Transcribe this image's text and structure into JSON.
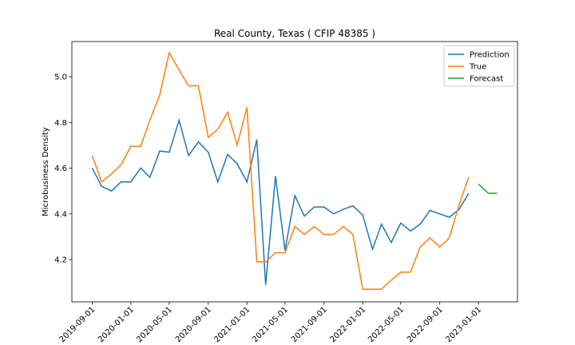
{
  "chart_data": {
    "type": "line",
    "title": "Real County, Texas ( CFIP 48385 )",
    "y_label": "Microbusiness Density",
    "x": [
      "2019-09-01",
      "2019-10-01",
      "2019-11-01",
      "2019-12-01",
      "2020-01-01",
      "2020-02-01",
      "2020-03-01",
      "2020-04-01",
      "2020-05-01",
      "2020-06-01",
      "2020-07-01",
      "2020-08-01",
      "2020-09-01",
      "2020-10-01",
      "2020-11-01",
      "2020-12-01",
      "2021-01-01",
      "2021-02-01",
      "2021-03-01",
      "2021-04-01",
      "2021-05-01",
      "2021-06-01",
      "2021-07-01",
      "2021-08-01",
      "2021-09-01",
      "2021-10-01",
      "2021-11-01",
      "2021-12-01",
      "2022-01-01",
      "2022-02-01",
      "2022-03-01",
      "2022-04-01",
      "2022-05-01",
      "2022-06-01",
      "2022-07-01",
      "2022-08-01",
      "2022-09-01",
      "2022-10-01",
      "2022-11-01",
      "2022-12-01",
      "2023-01-01",
      "2023-02-01",
      "2023-03-01"
    ],
    "series": [
      {
        "name": "Prediction",
        "color": "#1f77b4",
        "values": [
          4.6,
          4.52,
          4.5,
          4.54,
          4.54,
          4.6,
          4.56,
          4.675,
          4.67,
          4.81,
          4.655,
          4.715,
          4.67,
          4.54,
          4.66,
          4.62,
          4.54,
          4.725,
          4.09,
          4.565,
          4.24,
          4.48,
          4.39,
          4.43,
          4.43,
          4.4,
          4.42,
          4.435,
          4.395,
          4.245,
          4.355,
          4.275,
          4.36,
          4.325,
          4.355,
          4.415,
          4.4,
          4.385,
          4.42,
          4.49,
          null,
          null,
          null
        ]
      },
      {
        "name": "True",
        "color": "#ff7f0e",
        "values": [
          4.655,
          4.54,
          4.575,
          4.615,
          4.695,
          4.695,
          4.81,
          4.92,
          5.105,
          5.03,
          4.96,
          4.96,
          4.735,
          4.77,
          4.845,
          4.7,
          4.865,
          4.19,
          4.19,
          4.23,
          4.23,
          4.345,
          4.31,
          4.345,
          4.31,
          4.31,
          4.345,
          4.31,
          4.07,
          4.07,
          4.07,
          4.11,
          4.145,
          4.145,
          4.255,
          4.295,
          4.255,
          4.295,
          4.44,
          4.56,
          null,
          null,
          null
        ]
      },
      {
        "name": "Forecast",
        "color": "#2ca02c",
        "values": [
          null,
          null,
          null,
          null,
          null,
          null,
          null,
          null,
          null,
          null,
          null,
          null,
          null,
          null,
          null,
          null,
          null,
          null,
          null,
          null,
          null,
          null,
          null,
          null,
          null,
          null,
          null,
          null,
          null,
          null,
          null,
          null,
          null,
          null,
          null,
          null,
          null,
          null,
          null,
          null,
          4.53,
          4.49,
          4.49
        ]
      }
    ],
    "xlim": [
      "2019-06-29",
      "2023-05-04"
    ],
    "xticks": [
      "2019-09-01",
      "2020-01-01",
      "2020-05-01",
      "2020-09-01",
      "2021-01-01",
      "2021-05-01",
      "2021-09-01",
      "2022-01-01",
      "2022-05-01",
      "2022-09-01",
      "2023-01-01"
    ],
    "ylim": [
      4.015,
      5.154
    ],
    "yticks": [
      4.2,
      4.4,
      4.6,
      4.8,
      {
        "value": 5,
        "label": "5.0"
      }
    ],
    "legend": "upper right"
  }
}
